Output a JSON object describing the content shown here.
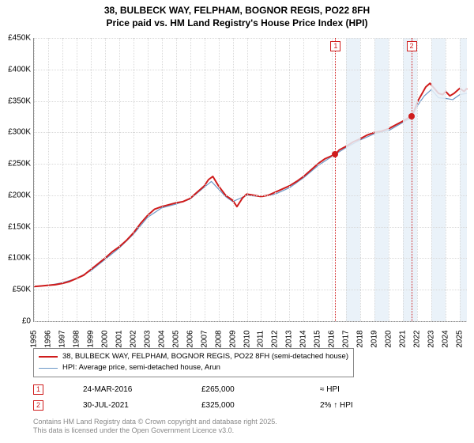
{
  "title": {
    "line1": "38, BULBECK WAY, FELPHAM, BOGNOR REGIS, PO22 8FH",
    "line2": "Price paid vs. HM Land Registry's House Price Index (HPI)"
  },
  "chart": {
    "type": "line",
    "x_range": [
      1995,
      2025.5
    ],
    "y_range": [
      0,
      450000
    ],
    "y_ticks": [
      0,
      50000,
      100000,
      150000,
      200000,
      250000,
      300000,
      350000,
      400000,
      450000
    ],
    "y_tick_labels": [
      "£0",
      "£50K",
      "£100K",
      "£150K",
      "£200K",
      "£250K",
      "£300K",
      "£350K",
      "£400K",
      "£450K"
    ],
    "x_ticks": [
      1995,
      1996,
      1997,
      1998,
      1999,
      2000,
      2001,
      2002,
      2003,
      2004,
      2005,
      2006,
      2007,
      2008,
      2009,
      2010,
      2011,
      2012,
      2013,
      2014,
      2015,
      2016,
      2017,
      2018,
      2019,
      2020,
      2021,
      2022,
      2023,
      2024,
      2025
    ],
    "background": "#ffffff",
    "grid_color": "#d9d9d9",
    "axis_color": "#888888",
    "shaded_bands": [
      {
        "from": 2017,
        "to": 2018,
        "color": "#e6f0f8"
      },
      {
        "from": 2019,
        "to": 2020,
        "color": "#e6f0f8"
      },
      {
        "from": 2021,
        "to": 2022,
        "color": "#e6f0f8"
      },
      {
        "from": 2023,
        "to": 2024,
        "color": "#e6f0f8"
      },
      {
        "from": 2025,
        "to": 2025.5,
        "color": "#e6f0f8"
      }
    ],
    "series": {
      "property": {
        "color": "#cf1c1c",
        "width": 2,
        "points": [
          [
            1995,
            55000
          ],
          [
            1995.5,
            56000
          ],
          [
            1996,
            57000
          ],
          [
            1996.5,
            58000
          ],
          [
            1997,
            60000
          ],
          [
            1997.5,
            63000
          ],
          [
            1998,
            68000
          ],
          [
            1998.5,
            73000
          ],
          [
            1999,
            82000
          ],
          [
            1999.5,
            91000
          ],
          [
            2000,
            100000
          ],
          [
            2000.5,
            110000
          ],
          [
            2001,
            118000
          ],
          [
            2001.5,
            128000
          ],
          [
            2002,
            140000
          ],
          [
            2002.5,
            155000
          ],
          [
            2003,
            168000
          ],
          [
            2003.5,
            178000
          ],
          [
            2004,
            182000
          ],
          [
            2004.5,
            185000
          ],
          [
            2005,
            188000
          ],
          [
            2005.5,
            190000
          ],
          [
            2006,
            195000
          ],
          [
            2006.5,
            205000
          ],
          [
            2007,
            215000
          ],
          [
            2007.3,
            225000
          ],
          [
            2007.6,
            230000
          ],
          [
            2008,
            215000
          ],
          [
            2008.5,
            200000
          ],
          [
            2009,
            192000
          ],
          [
            2009.3,
            182000
          ],
          [
            2009.7,
            196000
          ],
          [
            2010,
            202000
          ],
          [
            2010.5,
            200000
          ],
          [
            2011,
            198000
          ],
          [
            2011.5,
            200000
          ],
          [
            2012,
            205000
          ],
          [
            2012.5,
            210000
          ],
          [
            2013,
            215000
          ],
          [
            2013.5,
            222000
          ],
          [
            2014,
            230000
          ],
          [
            2014.5,
            240000
          ],
          [
            2015,
            250000
          ],
          [
            2015.5,
            258000
          ],
          [
            2016,
            263000
          ],
          [
            2016.23,
            265000
          ],
          [
            2016.5,
            272000
          ],
          [
            2017,
            278000
          ],
          [
            2017.5,
            285000
          ],
          [
            2018,
            290000
          ],
          [
            2018.5,
            296000
          ],
          [
            2019,
            300000
          ],
          [
            2019.5,
            302000
          ],
          [
            2020,
            306000
          ],
          [
            2020.5,
            312000
          ],
          [
            2021,
            318000
          ],
          [
            2021.3,
            322000
          ],
          [
            2021.58,
            325000
          ],
          [
            2021.8,
            335000
          ],
          [
            2022,
            348000
          ],
          [
            2022.3,
            360000
          ],
          [
            2022.6,
            372000
          ],
          [
            2022.9,
            378000
          ],
          [
            2023.2,
            370000
          ],
          [
            2023.5,
            362000
          ],
          [
            2023.8,
            360000
          ],
          [
            2024,
            365000
          ],
          [
            2024.3,
            358000
          ],
          [
            2024.6,
            362000
          ],
          [
            2025,
            370000
          ],
          [
            2025.3,
            365000
          ],
          [
            2025.5,
            370000
          ]
        ]
      },
      "hpi": {
        "color": "#6b98c7",
        "width": 1.2,
        "points": [
          [
            1995,
            55000
          ],
          [
            1996,
            57000
          ],
          [
            1997,
            61000
          ],
          [
            1998,
            68000
          ],
          [
            1999,
            80000
          ],
          [
            2000,
            98000
          ],
          [
            2001,
            116000
          ],
          [
            2002,
            138000
          ],
          [
            2003,
            165000
          ],
          [
            2004,
            180000
          ],
          [
            2005,
            186000
          ],
          [
            2006,
            194000
          ],
          [
            2007,
            213000
          ],
          [
            2007.5,
            222000
          ],
          [
            2008,
            210000
          ],
          [
            2008.5,
            198000
          ],
          [
            2009,
            190000
          ],
          [
            2009.5,
            195000
          ],
          [
            2010,
            200000
          ],
          [
            2011,
            198000
          ],
          [
            2012,
            202000
          ],
          [
            2013,
            212000
          ],
          [
            2014,
            228000
          ],
          [
            2015,
            247000
          ],
          [
            2016,
            262000
          ],
          [
            2017,
            276000
          ],
          [
            2018,
            288000
          ],
          [
            2019,
            298000
          ],
          [
            2020,
            303000
          ],
          [
            2021,
            316000
          ],
          [
            2021.6,
            323000
          ],
          [
            2022,
            342000
          ],
          [
            2022.5,
            358000
          ],
          [
            2023,
            368000
          ],
          [
            2023.5,
            355000
          ],
          [
            2024,
            354000
          ],
          [
            2024.5,
            352000
          ],
          [
            2025,
            360000
          ],
          [
            2025.5,
            362000
          ]
        ]
      }
    },
    "sale_markers": [
      {
        "n": "1",
        "x": 2016.23,
        "y": 265000
      },
      {
        "n": "2",
        "x": 2021.58,
        "y": 325000
      }
    ]
  },
  "legend": {
    "items": [
      {
        "color": "#cf1c1c",
        "width": 2,
        "label": "38, BULBECK WAY, FELPHAM, BOGNOR REGIS, PO22 8FH (semi-detached house)"
      },
      {
        "color": "#6b98c7",
        "width": 1.2,
        "label": "HPI: Average price, semi-detached house, Arun"
      }
    ]
  },
  "sales": [
    {
      "n": "1",
      "date": "24-MAR-2016",
      "price": "£265,000",
      "note": "≈ HPI"
    },
    {
      "n": "2",
      "date": "30-JUL-2021",
      "price": "£325,000",
      "note": "2% ↑ HPI"
    }
  ],
  "copyright": {
    "line1": "Contains HM Land Registry data © Crown copyright and database right 2025.",
    "line2": "This data is licensed under the Open Government Licence v3.0."
  }
}
